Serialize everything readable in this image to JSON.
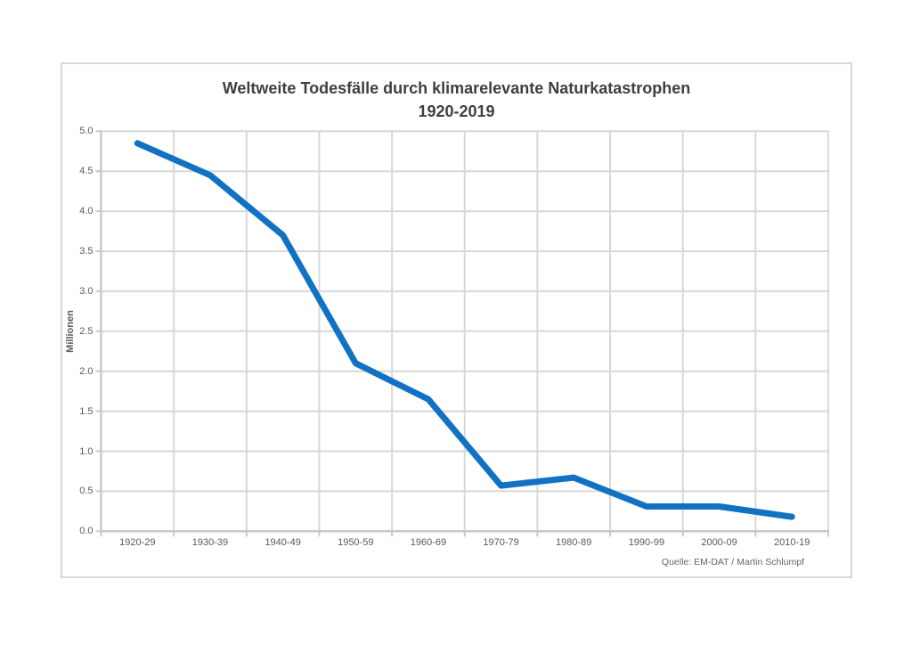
{
  "colors": {
    "background": "#ffffff",
    "frame_border": "#d7d7d7",
    "grid": "#d8d8d8",
    "axis": "#c9c9c9",
    "title_text": "#3f3f3f",
    "tick_text": "#5a5a5a",
    "source_text": "#646464",
    "line": "#1172c3"
  },
  "chart_data": {
    "type": "line",
    "title": "Weltweite Todesfälle durch klimarelevante Naturkatastrophen",
    "subtitle": "1920-2019",
    "ylabel": "Millionen",
    "xlabel": "",
    "categories": [
      "1920-29",
      "1930-39",
      "1940-49",
      "1950-59",
      "1960-69",
      "1970-79",
      "1980-89",
      "1990-99",
      "2000-09",
      "2010-19"
    ],
    "values": [
      4.85,
      4.45,
      3.7,
      2.1,
      1.65,
      0.57,
      0.67,
      0.31,
      0.31,
      0.18
    ],
    "yticks": [
      "5.0",
      "4.5",
      "4.0",
      "3.5",
      "3.0",
      "2.5",
      "2.0",
      "1.5",
      "1.0",
      "0.5",
      "0.0"
    ],
    "ylim": [
      0,
      5
    ],
    "grid": true,
    "legend": "none",
    "line_color": "#1172c3",
    "source": "Quelle: EM-DAT / Martin Schlumpf"
  }
}
